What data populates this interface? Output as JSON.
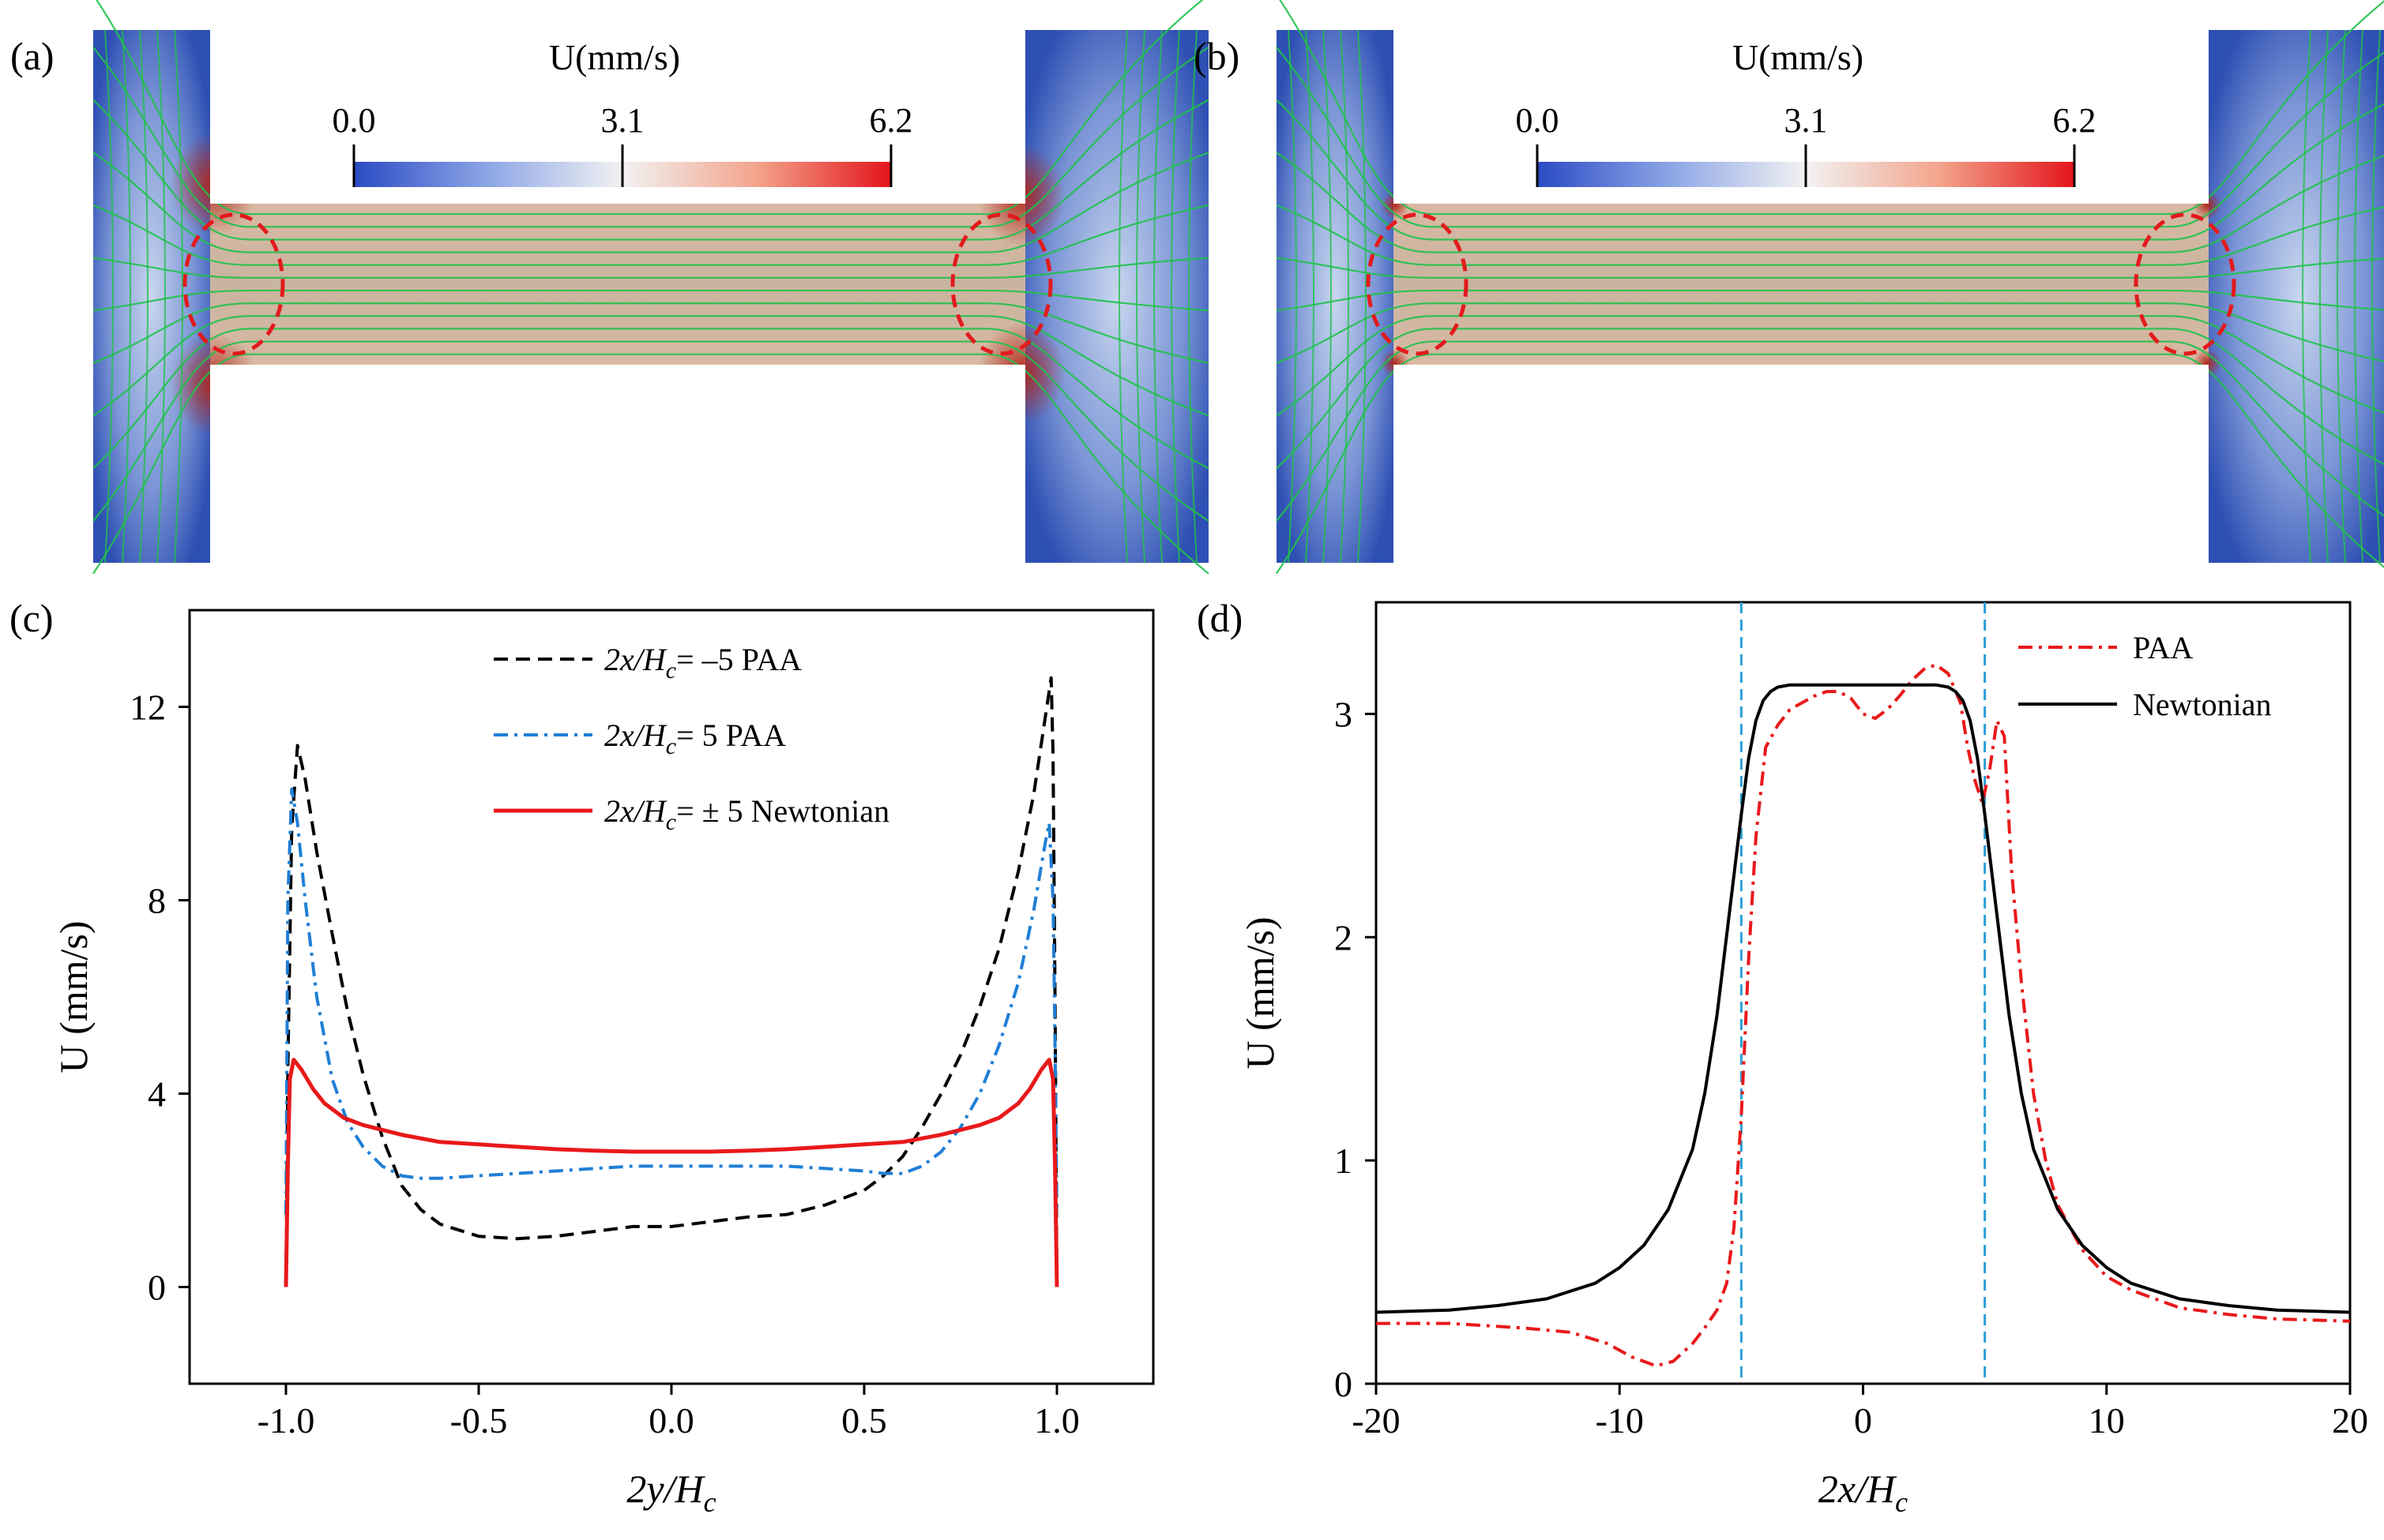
{
  "panels": {
    "a": {
      "label": "(a)",
      "colorbar": {
        "title": "U(mm/s)",
        "ticks": [
          "0.0",
          "3.1",
          "6.2"
        ]
      }
    },
    "b": {
      "label": "(b)",
      "colorbar": {
        "title": "U(mm/s)",
        "ticks": [
          "0.0",
          "3.1",
          "6.2"
        ]
      }
    },
    "c": {
      "label": "(c)"
    },
    "d": {
      "label": "(d)"
    }
  },
  "colors": {
    "paa_neg5": "#000000",
    "paa_pos5": "#1f7fd6",
    "newtonian_c": "#e8191b",
    "paa_d": "#e8191b",
    "newtonian_d": "#000000",
    "vline": "#2a9fd6",
    "streamline": "#1fc24a",
    "ellipse": "#e31a1c"
  },
  "chart_data": [
    {
      "type": "line",
      "panel": "c",
      "title": "",
      "xlabel": "2y/Hc",
      "xlabel_main": "2y/H",
      "xlabel_sub": "c",
      "ylabel": "U (mm/s)",
      "xlim": [
        -1.25,
        1.25
      ],
      "ylim": [
        -2,
        14
      ],
      "xticks": [
        -1.0,
        -0.5,
        0.0,
        0.5,
        1.0
      ],
      "xtick_labels": [
        "-1.0",
        "-0.5",
        "0.0",
        "0.5",
        "1.0"
      ],
      "yticks": [
        0,
        4,
        8,
        12
      ],
      "ytick_labels": [
        "0",
        "4",
        "8",
        "12"
      ],
      "legend_loc": "top-right",
      "series": [
        {
          "name": "2x/Hc= –5 PAA",
          "legend_pre": "2x/H",
          "legend_sub": "c",
          "legend_post": "= –5 PAA",
          "style": "dashed",
          "x": [
            -1.0,
            -0.995,
            -0.985,
            -0.97,
            -0.95,
            -0.92,
            -0.88,
            -0.84,
            -0.8,
            -0.75,
            -0.7,
            -0.65,
            -0.6,
            -0.5,
            -0.4,
            -0.3,
            -0.2,
            -0.1,
            0.0,
            0.1,
            0.2,
            0.3,
            0.4,
            0.5,
            0.55,
            0.6,
            0.65,
            0.7,
            0.75,
            0.8,
            0.85,
            0.9,
            0.94,
            0.97,
            0.985,
            0.99,
            0.995,
            1.0
          ],
          "y": [
            0.0,
            4.5,
            9.5,
            11.2,
            10.5,
            9.0,
            7.3,
            5.7,
            4.4,
            3.1,
            2.1,
            1.6,
            1.3,
            1.05,
            1.0,
            1.05,
            1.15,
            1.25,
            1.25,
            1.35,
            1.45,
            1.5,
            1.7,
            2.0,
            2.3,
            2.7,
            3.3,
            4.0,
            4.8,
            5.8,
            7.0,
            8.6,
            10.2,
            11.8,
            12.6,
            11.0,
            6.0,
            0.0
          ]
        },
        {
          "name": "2x/Hc= 5 PAA",
          "legend_pre": "2x/H",
          "legend_sub": "c",
          "legend_post": "= 5 PAA",
          "style": "dashdot",
          "x": [
            -1.0,
            -0.995,
            -0.985,
            -0.97,
            -0.95,
            -0.92,
            -0.88,
            -0.84,
            -0.8,
            -0.75,
            -0.7,
            -0.65,
            -0.6,
            -0.5,
            -0.4,
            -0.3,
            -0.2,
            -0.1,
            0.0,
            0.1,
            0.2,
            0.3,
            0.4,
            0.5,
            0.55,
            0.6,
            0.65,
            0.7,
            0.75,
            0.8,
            0.85,
            0.9,
            0.94,
            0.97,
            0.98,
            0.99,
            0.995,
            1.0
          ],
          "y": [
            1.5,
            8.0,
            10.3,
            9.6,
            8.0,
            6.0,
            4.3,
            3.4,
            2.9,
            2.5,
            2.3,
            2.25,
            2.25,
            2.3,
            2.35,
            2.4,
            2.45,
            2.5,
            2.5,
            2.5,
            2.5,
            2.5,
            2.45,
            2.4,
            2.35,
            2.35,
            2.5,
            2.8,
            3.3,
            4.0,
            5.0,
            6.3,
            7.8,
            9.2,
            9.6,
            8.0,
            5.0,
            1.5
          ]
        },
        {
          "name": "2x/Hc= ± 5 Newtonian",
          "legend_pre": "2x/H",
          "legend_sub": "c",
          "legend_post": "= ± 5 Newtonian",
          "style": "solid",
          "x": [
            -1.0,
            -0.995,
            -0.99,
            -0.98,
            -0.96,
            -0.93,
            -0.9,
            -0.85,
            -0.8,
            -0.75,
            -0.7,
            -0.6,
            -0.5,
            -0.4,
            -0.3,
            -0.2,
            -0.1,
            0.0,
            0.1,
            0.2,
            0.3,
            0.4,
            0.5,
            0.6,
            0.7,
            0.75,
            0.8,
            0.85,
            0.9,
            0.93,
            0.96,
            0.98,
            0.99,
            0.995,
            1.0
          ],
          "y": [
            0.0,
            2.5,
            4.3,
            4.7,
            4.5,
            4.1,
            3.8,
            3.5,
            3.35,
            3.25,
            3.15,
            3.0,
            2.95,
            2.9,
            2.85,
            2.82,
            2.8,
            2.8,
            2.8,
            2.82,
            2.85,
            2.9,
            2.95,
            3.0,
            3.15,
            3.25,
            3.35,
            3.5,
            3.8,
            4.1,
            4.5,
            4.7,
            4.3,
            2.5,
            0.0
          ]
        }
      ]
    },
    {
      "type": "line",
      "panel": "d",
      "title": "",
      "xlabel": "2x/Hc",
      "xlabel_main": "2x/H",
      "xlabel_sub": "c",
      "ylabel": "U (mm/s)",
      "xlim": [
        -20,
        20
      ],
      "ylim": [
        0,
        3.5
      ],
      "xticks": [
        -20,
        -10,
        0,
        10,
        20
      ],
      "xtick_labels": [
        "-20",
        "-10",
        "0",
        "10",
        "20"
      ],
      "yticks": [
        0,
        1,
        2,
        3
      ],
      "ytick_labels": [
        "0",
        "1",
        "2",
        "3"
      ],
      "vlines": [
        -5,
        5
      ],
      "legend_loc": "top-right",
      "series": [
        {
          "name": "PAA",
          "style": "dashdot",
          "x": [
            -20,
            -17,
            -14,
            -12,
            -10.5,
            -9.5,
            -8.5,
            -7.8,
            -7,
            -6.5,
            -6,
            -5.6,
            -5.3,
            -5,
            -4.7,
            -4.4,
            -4,
            -3.5,
            -3,
            -2.5,
            -2,
            -1.5,
            -1,
            -0.5,
            0,
            0.5,
            1,
            1.5,
            2,
            2.5,
            3,
            3.5,
            4,
            4.3,
            4.6,
            4.9,
            5.2,
            5.5,
            5.8,
            6.1,
            6.5,
            7,
            7.5,
            8,
            9,
            10,
            11,
            12,
            13,
            15,
            17,
            20
          ],
          "y": [
            0.27,
            0.27,
            0.25,
            0.23,
            0.18,
            0.12,
            0.08,
            0.1,
            0.18,
            0.25,
            0.33,
            0.45,
            0.7,
            1.2,
            1.9,
            2.45,
            2.85,
            2.95,
            3.02,
            3.05,
            3.08,
            3.1,
            3.1,
            3.07,
            3.0,
            2.98,
            3.02,
            3.08,
            3.15,
            3.2,
            3.22,
            3.18,
            3.05,
            2.85,
            2.7,
            2.6,
            2.75,
            2.97,
            2.9,
            2.3,
            1.8,
            1.3,
            1.0,
            0.8,
            0.6,
            0.48,
            0.42,
            0.38,
            0.34,
            0.31,
            0.29,
            0.28
          ]
        },
        {
          "name": "Newtonian",
          "style": "solid",
          "x": [
            -20,
            -17,
            -15,
            -13,
            -11,
            -10,
            -9,
            -8,
            -7,
            -6.5,
            -6,
            -5.5,
            -5,
            -4.7,
            -4.4,
            -4.1,
            -3.8,
            -3.5,
            -3,
            -2,
            -1,
            0,
            1,
            2,
            3,
            3.5,
            3.8,
            4.1,
            4.4,
            4.7,
            5,
            5.5,
            6,
            6.5,
            7,
            8,
            9,
            10,
            11,
            13,
            15,
            17,
            20
          ],
          "y": [
            0.32,
            0.33,
            0.35,
            0.38,
            0.45,
            0.52,
            0.62,
            0.78,
            1.05,
            1.3,
            1.65,
            2.1,
            2.55,
            2.8,
            2.97,
            3.06,
            3.1,
            3.12,
            3.13,
            3.13,
            3.13,
            3.13,
            3.13,
            3.13,
            3.13,
            3.12,
            3.1,
            3.06,
            2.97,
            2.8,
            2.55,
            2.1,
            1.65,
            1.3,
            1.05,
            0.78,
            0.62,
            0.52,
            0.45,
            0.38,
            0.35,
            0.33,
            0.32
          ]
        }
      ]
    }
  ]
}
